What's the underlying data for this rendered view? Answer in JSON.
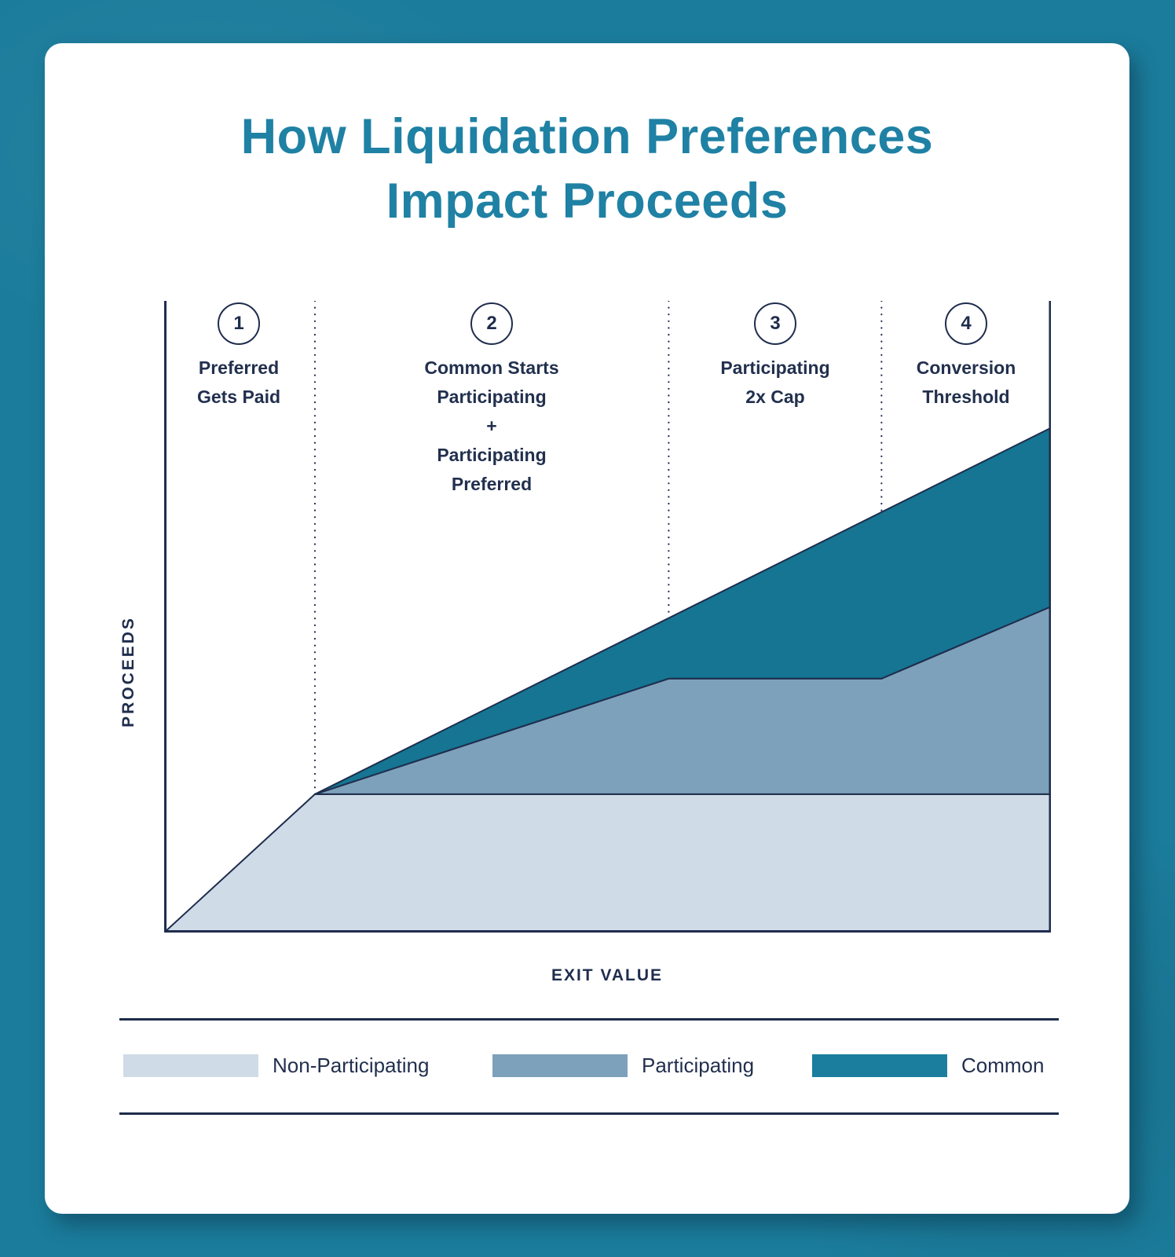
{
  "title": {
    "line1": "How Liquidation Preferences",
    "line2": "Impact Proceeds"
  },
  "axes": {
    "y_label": "PROCEEDS",
    "x_label": "EXIT VALUE"
  },
  "sections": [
    {
      "number": "1",
      "label_lines": [
        "Preferred",
        "Gets Paid"
      ]
    },
    {
      "number": "2",
      "label_lines": [
        "Common Starts",
        "Participating",
        "+",
        "Participating",
        "Preferred"
      ]
    },
    {
      "number": "3",
      "label_lines": [
        "Participating",
        "2x Cap"
      ]
    },
    {
      "number": "4",
      "label_lines": [
        "Conversion",
        "Threshold"
      ]
    }
  ],
  "legend": [
    {
      "label": "Non-Participating",
      "color": "#cfdbe7"
    },
    {
      "label": "Participating",
      "color": "#7da1bb"
    },
    {
      "label": "Common",
      "color": "#1b7e9e"
    }
  ],
  "colors": {
    "background": "#1b7c9b",
    "card": "#ffffff",
    "title_text": "#1f81a4",
    "line_and_text_navy": "#1f2d4d",
    "non_participating_fill": "#cfdbe7",
    "participating_fill": "#7da1bb",
    "common_fill": "#157592"
  },
  "chart_data": {
    "type": "area",
    "title": "How Liquidation Preferences Impact Proceeds",
    "xlabel": "EXIT VALUE",
    "ylabel": "PROCEEDS",
    "x_unit": "percent of exit-value axis",
    "y_unit": "percent of proceeds axis",
    "xlim": [
      0,
      100
    ],
    "ylim": [
      0,
      100
    ],
    "grid": false,
    "legend_position": "bottom",
    "stages": [
      {
        "number": "1",
        "label": "Preferred Gets Paid",
        "x_range_pct": [
          0,
          17
        ]
      },
      {
        "number": "2",
        "label": "Common Starts Participating + Participating Preferred",
        "x_range_pct": [
          17,
          56.9
        ]
      },
      {
        "number": "3",
        "label": "Participating 2x Cap",
        "x_range_pct": [
          56.9,
          80.9
        ]
      },
      {
        "number": "4",
        "label": "Conversion Threshold",
        "x_range_pct": [
          80.9,
          100
        ]
      }
    ],
    "series": [
      {
        "name": "Non-Participating",
        "points_pct": [
          [
            0,
            0
          ],
          [
            17,
            21.9
          ],
          [
            100,
            21.9
          ]
        ]
      },
      {
        "name": "Participating",
        "points_pct": [
          [
            17,
            21.9
          ],
          [
            56.9,
            40.2
          ],
          [
            80.9,
            40.2
          ],
          [
            100,
            51.6
          ]
        ]
      },
      {
        "name": "Common",
        "points_pct": [
          [
            17,
            21.9
          ],
          [
            100,
            79.9
          ]
        ]
      }
    ],
    "polygons": [
      {
        "name": "non-participating-area",
        "color": "#cfdbe7",
        "points": [
          [
            0,
            0
          ],
          [
            17,
            21.9
          ],
          [
            100,
            21.9
          ],
          [
            100,
            0
          ]
        ]
      },
      {
        "name": "participating-area",
        "color": "#7da1bb",
        "points": [
          [
            17,
            21.9
          ],
          [
            56.9,
            40.2
          ],
          [
            80.9,
            40.2
          ],
          [
            100,
            51.6
          ],
          [
            100,
            21.9
          ]
        ]
      },
      {
        "name": "common-area",
        "color": "#157592",
        "points": [
          [
            17,
            21.9
          ],
          [
            100,
            79.9
          ],
          [
            100,
            51.6
          ],
          [
            80.9,
            40.2
          ],
          [
            56.9,
            40.2
          ]
        ]
      }
    ],
    "guide_lines": [
      {
        "x": 17,
        "top": 100,
        "bottom": 21.9
      },
      {
        "x": 56.9,
        "top": 100,
        "bottom": 40.2
      },
      {
        "x": 80.9,
        "top": 100,
        "bottom": 40.2
      }
    ]
  }
}
